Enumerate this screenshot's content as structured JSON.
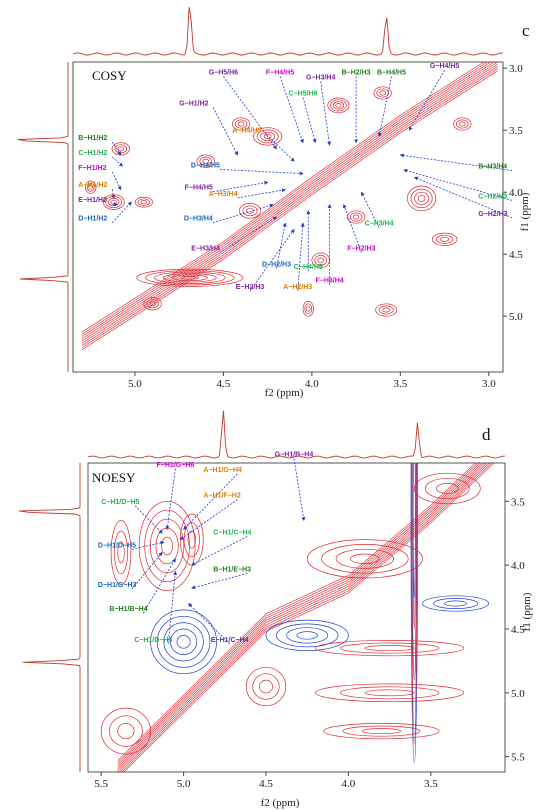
{
  "chart_data": [
    {
      "type": "heatmap",
      "panel_letter": "c",
      "title": "COSY",
      "xlabel": "f2 (ppm)",
      "ylabel": "f1 (ppm)",
      "xlim": [
        5.35,
        2.92
      ],
      "ylim": [
        2.95,
        5.45
      ],
      "xticks": [
        5.0,
        4.5,
        4.0,
        3.5,
        3.0
      ],
      "yticks": [
        3.0,
        3.5,
        4.0,
        4.5,
        5.0
      ],
      "diagonal": [
        [
          5.3,
          5.2
        ],
        [
          4.5,
          4.47
        ],
        [
          4.0,
          3.95
        ],
        [
          3.5,
          3.45
        ],
        [
          2.95,
          2.95
        ]
      ],
      "proj_peaks": [
        4.69,
        3.58
      ],
      "side_peaks": [
        3.58,
        4.7
      ],
      "contours": [
        {
          "x": 4.69,
          "y": 4.69,
          "rx": 0.3,
          "ry": 0.07,
          "n": 6,
          "color": "#e0262f"
        },
        {
          "x": 5.08,
          "y": 3.65,
          "rx": 0.05,
          "ry": 0.05,
          "n": 3,
          "color": "#e0262f"
        },
        {
          "x": 5.12,
          "y": 4.08,
          "rx": 0.06,
          "ry": 0.06,
          "n": 4,
          "color": "#e0262f"
        },
        {
          "x": 4.95,
          "y": 4.08,
          "rx": 0.05,
          "ry": 0.04,
          "n": 3,
          "color": "#e0262f"
        },
        {
          "x": 5.25,
          "y": 3.96,
          "rx": 0.03,
          "ry": 0.05,
          "n": 3,
          "color": "#e0262f"
        },
        {
          "x": 4.02,
          "y": 4.94,
          "rx": 0.03,
          "ry": 0.06,
          "n": 3,
          "color": "#e0262f"
        },
        {
          "x": 3.58,
          "y": 4.95,
          "rx": 0.06,
          "ry": 0.05,
          "n": 3,
          "color": "#e0262f"
        },
        {
          "x": 3.25,
          "y": 4.38,
          "rx": 0.07,
          "ry": 0.05,
          "n": 3,
          "color": "#e0262f"
        },
        {
          "x": 3.38,
          "y": 4.05,
          "rx": 0.08,
          "ry": 0.1,
          "n": 4,
          "color": "#e0262f"
        },
        {
          "x": 4.25,
          "y": 3.55,
          "rx": 0.08,
          "ry": 0.07,
          "n": 4,
          "color": "#e0262f"
        },
        {
          "x": 4.4,
          "y": 3.45,
          "rx": 0.05,
          "ry": 0.05,
          "n": 3,
          "color": "#e0262f"
        },
        {
          "x": 3.85,
          "y": 3.3,
          "rx": 0.06,
          "ry": 0.06,
          "n": 4,
          "color": "#e0262f"
        },
        {
          "x": 3.6,
          "y": 3.2,
          "rx": 0.05,
          "ry": 0.05,
          "n": 3,
          "color": "#e0262f"
        },
        {
          "x": 4.35,
          "y": 4.15,
          "rx": 0.06,
          "ry": 0.06,
          "n": 3,
          "color": "#e0262f"
        },
        {
          "x": 4.9,
          "y": 4.9,
          "rx": 0.05,
          "ry": 0.05,
          "n": 3,
          "color": "#e0262f"
        },
        {
          "x": 3.95,
          "y": 4.55,
          "rx": 0.05,
          "ry": 0.06,
          "n": 3,
          "color": "#e0262f"
        },
        {
          "x": 3.75,
          "y": 4.2,
          "rx": 0.05,
          "ry": 0.05,
          "n": 3,
          "color": "#e0262f"
        },
        {
          "x": 3.15,
          "y": 3.45,
          "rx": 0.05,
          "ry": 0.05,
          "n": 3,
          "color": "#e0262f"
        },
        {
          "x": 4.6,
          "y": 3.75,
          "rx": 0.05,
          "ry": 0.05,
          "n": 3,
          "color": "#e0262f"
        }
      ],
      "annotations": [
        {
          "text": "B−H1/H2",
          "lx": 5.32,
          "ly": 3.58,
          "px": 5.08,
          "py": 3.7,
          "anchor": "start",
          "color": "#1f7a1f"
        },
        {
          "text": "C−H1/H2",
          "lx": 5.32,
          "ly": 3.7,
          "px": 5.07,
          "py": 3.79,
          "anchor": "start",
          "color": "#22b14c"
        },
        {
          "text": "F−H1/H2",
          "lx": 5.32,
          "ly": 3.82,
          "px": 5.08,
          "py": 3.98,
          "anchor": "start",
          "color": "#cc00cc"
        },
        {
          "text": "A−H1/H2",
          "lx": 5.32,
          "ly": 3.96,
          "px": 5.12,
          "py": 4.05,
          "anchor": "start",
          "color": "#e07b00"
        },
        {
          "text": "E−H1/H2",
          "lx": 5.32,
          "ly": 4.08,
          "px": 5.1,
          "py": 4.1,
          "anchor": "start",
          "color": "#7b1fa2"
        },
        {
          "text": "D−H1/H2",
          "lx": 5.32,
          "ly": 4.23,
          "px": 5.02,
          "py": 4.08,
          "anchor": "start",
          "color": "#1565c0"
        },
        {
          "text": "G−H1/H2",
          "lx": 4.75,
          "ly": 3.3,
          "px": 4.42,
          "py": 3.7,
          "anchor": "start",
          "color": "#7b1fa2"
        },
        {
          "text": "G−H5/H6",
          "lx": 4.5,
          "ly": 3.05,
          "px": 4.2,
          "py": 3.65,
          "anchor": "middle",
          "color": "#7b1fa2"
        },
        {
          "text": "F−H4/H5",
          "lx": 4.18,
          "ly": 3.05,
          "px": 4.05,
          "py": 3.6,
          "anchor": "middle",
          "color": "#cc00cc"
        },
        {
          "text": "C−H5/H6",
          "lx": 4.05,
          "ly": 3.22,
          "px": 3.98,
          "py": 3.6,
          "anchor": "middle",
          "color": "#22b14c"
        },
        {
          "text": "G−H3/H4",
          "lx": 3.95,
          "ly": 3.09,
          "px": 3.9,
          "py": 3.62,
          "anchor": "middle",
          "color": "#7b1fa2"
        },
        {
          "text": "B−H2/H3",
          "lx": 3.75,
          "ly": 3.05,
          "px": 3.75,
          "py": 3.6,
          "anchor": "middle",
          "color": "#1f7a1f"
        },
        {
          "text": "B−H4/H5",
          "lx": 3.55,
          "ly": 3.05,
          "px": 3.62,
          "py": 3.55,
          "anchor": "middle",
          "color": "#1f7a1f"
        },
        {
          "text": "G−H4/H5",
          "lx": 3.25,
          "ly": 3.0,
          "px": 3.45,
          "py": 3.5,
          "anchor": "middle",
          "color": "#7b1fa2"
        },
        {
          "text": "A−H4/H5",
          "lx": 4.45,
          "ly": 3.52,
          "px": 4.1,
          "py": 3.75,
          "anchor": "start",
          "color": "#e07b00"
        },
        {
          "text": "D−H4/H5",
          "lx": 4.52,
          "ly": 3.8,
          "px": 4.05,
          "py": 3.85,
          "anchor": "end",
          "color": "#1565c0"
        },
        {
          "text": "F−H4/H5",
          "lx": 4.56,
          "ly": 3.98,
          "px": 4.25,
          "py": 3.92,
          "anchor": "end",
          "color": "#7b1fa2"
        },
        {
          "text": "A−H3/H4",
          "lx": 4.42,
          "ly": 4.03,
          "px": 4.15,
          "py": 3.98,
          "anchor": "end",
          "color": "#e07b00"
        },
        {
          "text": "D−H3/H4",
          "lx": 4.56,
          "ly": 4.23,
          "px": 4.22,
          "py": 4.1,
          "anchor": "end",
          "color": "#1565c0"
        },
        {
          "text": "E−H3/H4",
          "lx": 4.52,
          "ly": 4.47,
          "px": 4.2,
          "py": 4.2,
          "anchor": "end",
          "color": "#7b1fa2"
        },
        {
          "text": "D−H2/H3",
          "lx": 4.2,
          "ly": 4.6,
          "px": 4.15,
          "py": 4.25,
          "anchor": "middle",
          "color": "#1565c0"
        },
        {
          "text": "E−H2/H3",
          "lx": 4.35,
          "ly": 4.78,
          "px": 4.1,
          "py": 4.3,
          "anchor": "middle",
          "color": "#7b1fa2"
        },
        {
          "text": "C−H4/H5",
          "lx": 4.02,
          "ly": 4.62,
          "px": 4.02,
          "py": 4.15,
          "anchor": "middle",
          "color": "#22b14c"
        },
        {
          "text": "A−H2/H3",
          "lx": 4.08,
          "ly": 4.78,
          "px": 4.05,
          "py": 4.25,
          "anchor": "middle",
          "color": "#e07b00"
        },
        {
          "text": "F−H3/H4",
          "lx": 3.9,
          "ly": 4.73,
          "px": 3.9,
          "py": 4.1,
          "anchor": "middle",
          "color": "#cc00cc"
        },
        {
          "text": "F−H2/H3",
          "lx": 3.72,
          "ly": 4.47,
          "px": 3.82,
          "py": 4.1,
          "anchor": "middle",
          "color": "#cc00cc"
        },
        {
          "text": "C−H3/H4",
          "lx": 3.62,
          "ly": 4.27,
          "px": 3.72,
          "py": 4.0,
          "anchor": "middle",
          "color": "#22b14c"
        },
        {
          "text": "B−H3/H4",
          "lx": 3.06,
          "ly": 3.81,
          "px": 3.5,
          "py": 3.7,
          "anchor": "start",
          "color": "#1f7a1f"
        },
        {
          "text": "C−H2/H3",
          "lx": 3.06,
          "ly": 4.05,
          "px": 3.48,
          "py": 3.82,
          "anchor": "start",
          "color": "#22b14c"
        },
        {
          "text": "G−H2/H3",
          "lx": 3.06,
          "ly": 4.19,
          "px": 3.42,
          "py": 3.88,
          "anchor": "start",
          "color": "#7b1fa2"
        }
      ]
    },
    {
      "type": "heatmap",
      "panel_letter": "d",
      "title": "NOESY",
      "xlabel": "f2 (ppm)",
      "ylabel": "f1 (ppm)",
      "xlim": [
        5.58,
        3.05
      ],
      "ylim": [
        3.2,
        5.62
      ],
      "xticks": [
        5.5,
        5.0,
        4.5,
        4.0,
        3.5
      ],
      "yticks": [
        3.5,
        4.0,
        4.5,
        5.0,
        5.5
      ],
      "diagonal": [
        [
          5.4,
          5.6
        ],
        [
          4.5,
          4.45
        ],
        [
          4.0,
          4.15
        ],
        [
          3.5,
          3.6
        ],
        [
          3.05,
          3.05
        ]
      ],
      "proj_peaks": [
        4.76,
        3.58
      ],
      "side_peaks": [
        3.58,
        4.76
      ],
      "contours": [
        {
          "x": 5.1,
          "y": 3.85,
          "rx": 0.17,
          "ry": 0.35,
          "n": 5,
          "color": "#e0262f"
        },
        {
          "x": 5.38,
          "y": 3.9,
          "rx": 0.06,
          "ry": 0.25,
          "n": 3,
          "color": "#e0262f"
        },
        {
          "x": 4.95,
          "y": 3.8,
          "rx": 0.07,
          "ry": 0.2,
          "n": 3,
          "color": "#e0262f"
        },
        {
          "x": 5.0,
          "y": 4.6,
          "rx": 0.2,
          "ry": 0.25,
          "n": 5,
          "color": "#1e3ccf"
        },
        {
          "x": 4.25,
          "y": 4.55,
          "rx": 0.25,
          "ry": 0.12,
          "n": 4,
          "color": "#1e3ccf"
        },
        {
          "x": 3.6,
          "y": 3.6,
          "rx": 0.02,
          "ry": 1.95,
          "n": 3,
          "color": "#1e3ccf"
        },
        {
          "x": 3.6,
          "y": 3.6,
          "rx": 0.015,
          "ry": 1.8,
          "n": 2,
          "color": "#e0262f"
        },
        {
          "x": 3.9,
          "y": 3.95,
          "rx": 0.35,
          "ry": 0.15,
          "n": 4,
          "color": "#e0262f"
        },
        {
          "x": 3.75,
          "y": 4.65,
          "rx": 0.45,
          "ry": 0.06,
          "n": 3,
          "color": "#e0262f"
        },
        {
          "x": 3.75,
          "y": 5.0,
          "rx": 0.45,
          "ry": 0.07,
          "n": 3,
          "color": "#e0262f"
        },
        {
          "x": 3.8,
          "y": 5.3,
          "rx": 0.35,
          "ry": 0.06,
          "n": 3,
          "color": "#e0262f"
        },
        {
          "x": 3.4,
          "y": 3.4,
          "rx": 0.2,
          "ry": 0.12,
          "n": 3,
          "color": "#e0262f"
        },
        {
          "x": 5.35,
          "y": 5.3,
          "rx": 0.15,
          "ry": 0.18,
          "n": 3,
          "color": "#e0262f"
        },
        {
          "x": 4.5,
          "y": 4.95,
          "rx": 0.12,
          "ry": 0.15,
          "n": 3,
          "color": "#e0262f"
        },
        {
          "x": 3.35,
          "y": 4.3,
          "rx": 0.2,
          "ry": 0.06,
          "n": 3,
          "color": "#1e3ccf"
        }
      ],
      "annotations": [
        {
          "text": "F−H1/G−H6",
          "lx": 5.05,
          "ly": 3.23,
          "px": 5.1,
          "py": 3.72,
          "anchor": "middle",
          "color": "#cc00cc"
        },
        {
          "text": "A−H1/G−H4",
          "lx": 4.88,
          "ly": 3.27,
          "px": 5.0,
          "py": 3.72,
          "anchor": "start",
          "color": "#e07b00"
        },
        {
          "text": "A−H1/F−H2",
          "lx": 4.88,
          "ly": 3.47,
          "px": 5.02,
          "py": 3.8,
          "anchor": "start",
          "color": "#e07b00"
        },
        {
          "text": "G−H1/B−H4",
          "lx": 4.33,
          "ly": 3.15,
          "px": 4.27,
          "py": 3.65,
          "anchor": "middle",
          "color": "#7b1fa2"
        },
        {
          "text": "C−H1/D−H5",
          "lx": 5.5,
          "ly": 3.52,
          "px": 5.13,
          "py": 3.75,
          "anchor": "start",
          "color": "#22b14c"
        },
        {
          "text": "D−H1/D−H5",
          "lx": 5.52,
          "ly": 3.86,
          "px": 5.12,
          "py": 3.82,
          "anchor": "start",
          "color": "#1565c0"
        },
        {
          "text": "D−H1/G−H3",
          "lx": 5.52,
          "ly": 4.17,
          "px": 5.13,
          "py": 3.9,
          "anchor": "start",
          "color": "#1565c0"
        },
        {
          "text": "B−H1/B−H4",
          "lx": 5.45,
          "ly": 4.36,
          "px": 5.05,
          "py": 3.95,
          "anchor": "start",
          "color": "#1f7a1f"
        },
        {
          "text": "C−H1/D−H5",
          "lx": 5.3,
          "ly": 4.6,
          "px": 5.05,
          "py": 4.05,
          "anchor": "start",
          "color": "#22b14c"
        },
        {
          "text": "C−H1/C−H4",
          "lx": 4.82,
          "ly": 3.76,
          "px": 4.95,
          "py": 4.0,
          "anchor": "start",
          "color": "#22b14c"
        },
        {
          "text": "B−H1/E−H3",
          "lx": 4.82,
          "ly": 4.05,
          "px": 4.95,
          "py": 4.18,
          "anchor": "start",
          "color": "#1f7a1f"
        },
        {
          "text": "E−H1/C−H4",
          "lx": 4.72,
          "ly": 4.6,
          "px": 4.97,
          "py": 4.3,
          "anchor": "middle",
          "color": "#7b1fa2"
        }
      ]
    }
  ]
}
